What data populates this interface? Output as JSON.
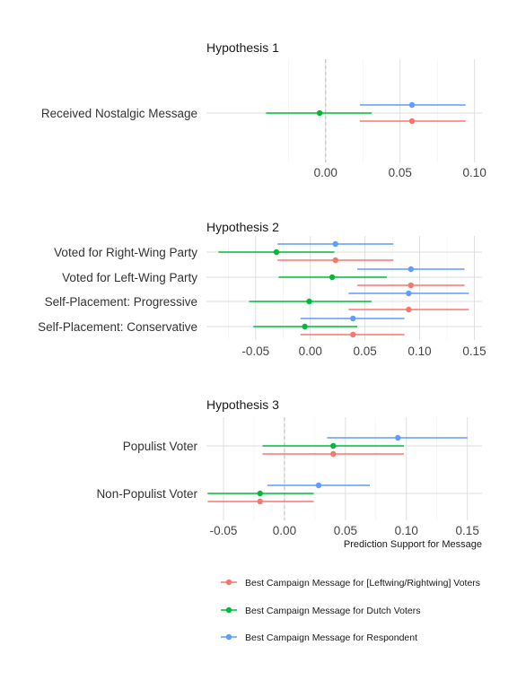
{
  "colors": {
    "red": "#F8766D",
    "green": "#00BA38",
    "blue": "#619CFF"
  },
  "chart_data": [
    {
      "type": "scatter",
      "title": "Hypothesis 1",
      "xlabel": "",
      "xlim": [
        -0.08,
        0.105
      ],
      "xticks": [
        0.0,
        0.05,
        0.1
      ],
      "xtick_labels": [
        "0.00",
        "0.05",
        "0.10"
      ],
      "zero_line": true,
      "categories": [
        "Received Nostalgic Message"
      ],
      "series": [
        {
          "name": "Best Campaign Message for Respondent",
          "color": "blue",
          "points": [
            {
              "category": "Received Nostalgic Message",
              "est": 0.058,
              "low": 0.023,
              "high": 0.094
            }
          ]
        },
        {
          "name": "Best Campaign Message for Dutch Voters",
          "color": "green",
          "points": [
            {
              "category": "Received Nostalgic Message",
              "est": -0.004,
              "low": -0.04,
              "high": 0.031
            }
          ]
        },
        {
          "name": "Best Campaign Message for [Leftwing/Rightwing] Voters",
          "color": "red",
          "points": [
            {
              "category": "Received Nostalgic Message",
              "est": 0.058,
              "low": 0.023,
              "high": 0.094
            }
          ]
        }
      ]
    },
    {
      "type": "scatter",
      "title": "Hypothesis 2",
      "xlabel": "",
      "xlim": [
        -0.095,
        0.157
      ],
      "xticks": [
        -0.05,
        0.0,
        0.05,
        0.1,
        0.15
      ],
      "xtick_labels": [
        "-0.05",
        "0.00",
        "0.05",
        "0.10",
        "0.15"
      ],
      "zero_line": false,
      "categories": [
        "Voted for Right-Wing Party",
        "Voted for Left-Wing Party",
        "Self-Placement: Progressive",
        "Self-Placement: Conservative"
      ],
      "series": [
        {
          "name": "Best Campaign Message for Respondent",
          "color": "blue",
          "points": [
            {
              "category": "Voted for Right-Wing Party",
              "est": 0.023,
              "low": -0.03,
              "high": 0.076
            },
            {
              "category": "Voted for Left-Wing Party",
              "est": 0.092,
              "low": 0.043,
              "high": 0.141
            },
            {
              "category": "Self-Placement: Progressive",
              "est": 0.09,
              "low": 0.035,
              "high": 0.145
            },
            {
              "category": "Self-Placement: Conservative",
              "est": 0.039,
              "low": -0.009,
              "high": 0.086
            }
          ]
        },
        {
          "name": "Best Campaign Message for Dutch Voters",
          "color": "green",
          "points": [
            {
              "category": "Voted for Right-Wing Party",
              "est": -0.031,
              "low": -0.084,
              "high": 0.022
            },
            {
              "category": "Voted for Left-Wing Party",
              "est": 0.02,
              "low": -0.029,
              "high": 0.07
            },
            {
              "category": "Self-Placement: Progressive",
              "est": -0.001,
              "low": -0.056,
              "high": 0.056
            },
            {
              "category": "Self-Placement: Conservative",
              "est": -0.005,
              "low": -0.052,
              "high": 0.043
            }
          ]
        },
        {
          "name": "Best Campaign Message for [Leftwing/Rightwing] Voters",
          "color": "red",
          "points": [
            {
              "category": "Voted for Right-Wing Party",
              "est": 0.023,
              "low": -0.03,
              "high": 0.076
            },
            {
              "category": "Voted for Left-Wing Party",
              "est": 0.092,
              "low": 0.043,
              "high": 0.141
            },
            {
              "category": "Self-Placement: Progressive",
              "est": 0.09,
              "low": 0.035,
              "high": 0.145
            },
            {
              "category": "Self-Placement: Conservative",
              "est": 0.039,
              "low": -0.009,
              "high": 0.086
            }
          ]
        }
      ]
    },
    {
      "type": "scatter",
      "title": "Hypothesis 3",
      "xlabel": "Prediction Support for Message",
      "xlim": [
        -0.064,
        0.162
      ],
      "xticks": [
        -0.05,
        0.0,
        0.05,
        0.1,
        0.15
      ],
      "xtick_labels": [
        "-0.05",
        "0.00",
        "0.05",
        "0.10",
        "0.15"
      ],
      "zero_line": true,
      "categories": [
        "Populist Voter",
        "Non-Populist Voter"
      ],
      "series": [
        {
          "name": "Best Campaign Message for Respondent",
          "color": "blue",
          "points": [
            {
              "category": "Populist Voter",
              "est": 0.093,
              "low": 0.035,
              "high": 0.15
            },
            {
              "category": "Non-Populist Voter",
              "est": 0.028,
              "low": -0.014,
              "high": 0.07
            }
          ]
        },
        {
          "name": "Best Campaign Message for Dutch Voters",
          "color": "green",
          "points": [
            {
              "category": "Populist Voter",
              "est": 0.04,
              "low": -0.018,
              "high": 0.098
            },
            {
              "category": "Non-Populist Voter",
              "est": -0.02,
              "low": -0.063,
              "high": 0.024
            }
          ]
        },
        {
          "name": "Best Campaign Message for [Leftwing/Rightwing] Voters",
          "color": "red",
          "points": [
            {
              "category": "Populist Voter",
              "est": 0.04,
              "low": -0.018,
              "high": 0.098
            },
            {
              "category": "Non-Populist Voter",
              "est": -0.02,
              "low": -0.063,
              "high": 0.024
            }
          ]
        }
      ]
    }
  ],
  "legend": {
    "position": "bottom",
    "items": [
      {
        "label": "Best Campaign Message for [Leftwing/Rightwing] Voters",
        "color": "red"
      },
      {
        "label": "Best Campaign Message for Dutch Voters",
        "color": "green"
      },
      {
        "label": "Best Campaign Message for Respondent",
        "color": "blue"
      }
    ]
  }
}
